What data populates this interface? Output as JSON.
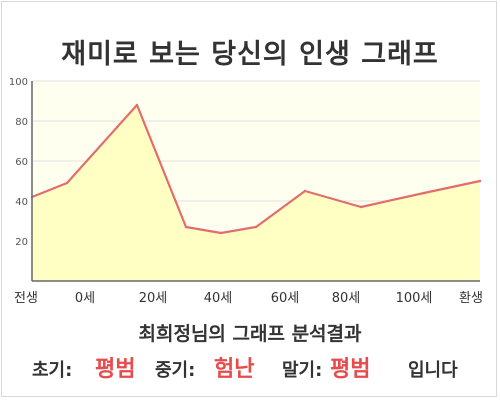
{
  "title": "재미로 보는 당신의 인생 그래프",
  "chart_data": {
    "type": "area",
    "x_categories": [
      "전생",
      "0세",
      "20세",
      "40세",
      "60세",
      "80세",
      "100세",
      "환생"
    ],
    "x": [
      -10,
      0,
      20,
      34,
      44,
      54,
      68,
      84,
      102,
      118
    ],
    "y": [
      42,
      49,
      88,
      27,
      24,
      27,
      45,
      37,
      44,
      50
    ],
    "ylim": [
      0,
      100
    ],
    "yticks": [
      20,
      40,
      60,
      80,
      100
    ],
    "grid": true,
    "colors": {
      "line": "#e36d6d",
      "fill": "#ffffc4",
      "background": "#fffff0",
      "grid": "#e0e0e0",
      "axis": "#666666"
    }
  },
  "result": {
    "title": "최희정님의 그래프 분석결과",
    "early_label": "초기:",
    "early_value": "평범",
    "middle_label": "중기:",
    "middle_value": "험난",
    "late_label": "말기:",
    "late_value": "평범",
    "ending": "입니다"
  }
}
